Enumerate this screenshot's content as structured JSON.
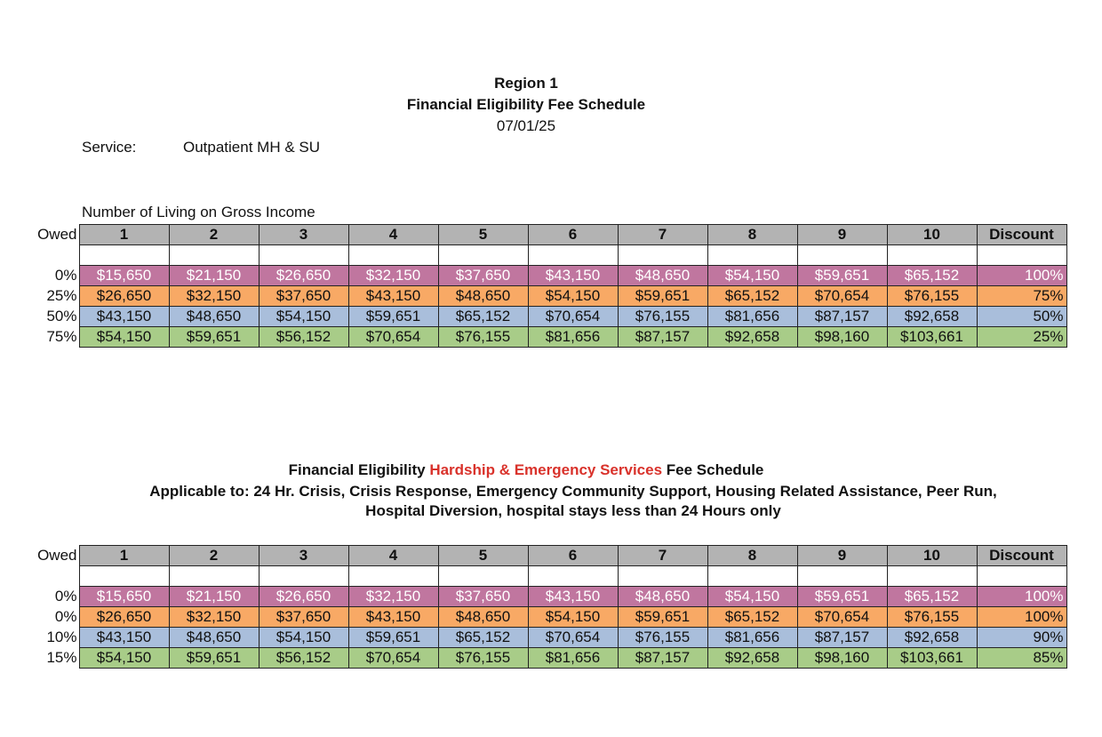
{
  "header": {
    "title": "Region 1",
    "subtitle": "Financial Eligibility Fee Schedule",
    "date": "07/01/25"
  },
  "service": {
    "label": "Service:",
    "value": "Outpatient MH & SU"
  },
  "table1": {
    "caption": "Number of Living on Gross Income",
    "owed_label": "Owed",
    "headers": [
      "1",
      "2",
      "3",
      "4",
      "5",
      "6",
      "7",
      "8",
      "9",
      "10",
      "Discount"
    ],
    "rows": [
      {
        "owed": "0%",
        "cells": [
          "$15,650",
          "$21,150",
          "$26,650",
          "$32,150",
          "$37,650",
          "$43,150",
          "$48,650",
          "$54,150",
          "$59,651",
          "$65,152"
        ],
        "discount": "100%"
      },
      {
        "owed": "25%",
        "cells": [
          "$26,650",
          "$32,150",
          "$37,650",
          "$43,150",
          "$48,650",
          "$54,150",
          "$59,651",
          "$65,152",
          "$70,654",
          "$76,155"
        ],
        "discount": "75%"
      },
      {
        "owed": "50%",
        "cells": [
          "$43,150",
          "$48,650",
          "$54,150",
          "$59,651",
          "$65,152",
          "$70,654",
          "$76,155",
          "$81,656",
          "$87,157",
          "$92,658"
        ],
        "discount": "50%"
      },
      {
        "owed": "75%",
        "cells": [
          "$54,150",
          "$59,651",
          "$56,152",
          "$70,654",
          "$76,155",
          "$81,656",
          "$87,157",
          "$92,658",
          "$98,160",
          "$103,661"
        ],
        "discount": "25%"
      }
    ]
  },
  "section2": {
    "title_start": "Financial Eligibility",
    "title_highlight": "Hardship & Emergency Services",
    "title_end": "Fee Schedule",
    "line2": "Applicable to: 24 Hr. Crisis, Crisis Response, Emergency Community Support, Housing Related Assistance, Peer Run,",
    "line3": "Hospital Diversion, hospital stays less than 24 Hours only"
  },
  "table2": {
    "owed_label": "Owed",
    "headers": [
      "1",
      "2",
      "3",
      "4",
      "5",
      "6",
      "7",
      "8",
      "9",
      "10",
      "Discount"
    ],
    "rows": [
      {
        "owed": "0%",
        "cells": [
          "$15,650",
          "$21,150",
          "$26,650",
          "$32,150",
          "$37,650",
          "$43,150",
          "$48,650",
          "$54,150",
          "$59,651",
          "$65,152"
        ],
        "discount": "100%"
      },
      {
        "owed": "0%",
        "cells": [
          "$26,650",
          "$32,150",
          "$37,650",
          "$43,150",
          "$48,650",
          "$54,150",
          "$59,651",
          "$65,152",
          "$70,654",
          "$76,155"
        ],
        "discount": "100%"
      },
      {
        "owed": "10%",
        "cells": [
          "$43,150",
          "$48,650",
          "$54,150",
          "$59,651",
          "$65,152",
          "$70,654",
          "$76,155",
          "$81,656",
          "$87,157",
          "$92,658"
        ],
        "discount": "90%"
      },
      {
        "owed": "15%",
        "cells": [
          "$54,150",
          "$59,651",
          "$56,152",
          "$70,654",
          "$76,155",
          "$81,656",
          "$87,157",
          "$92,658",
          "$98,160",
          "$103,661"
        ],
        "discount": "85%"
      }
    ]
  }
}
